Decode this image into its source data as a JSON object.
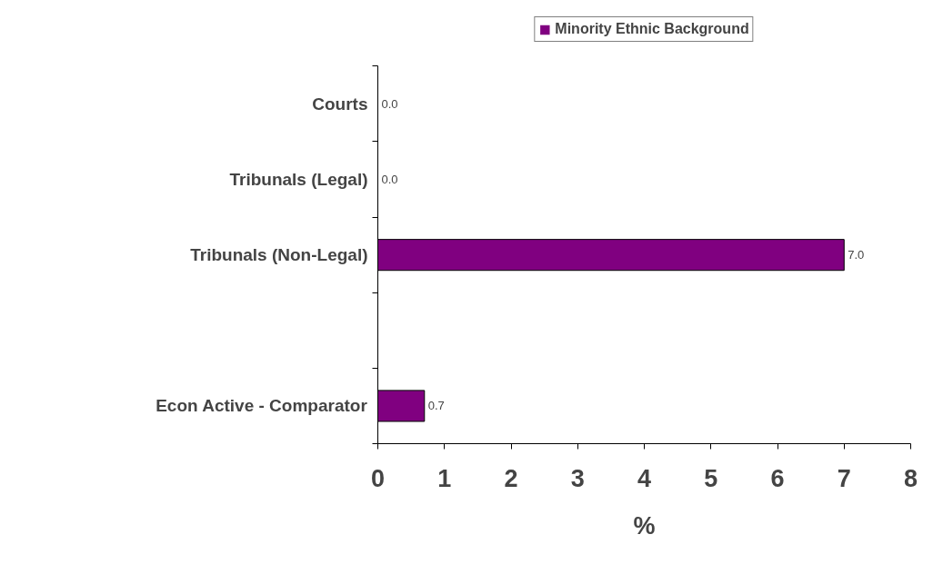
{
  "chart_data": {
    "type": "bar",
    "orientation": "horizontal",
    "xlabel": "%",
    "categories": [
      "Courts",
      "Tribunals (Legal)",
      "Tribunals (Non-Legal)",
      null,
      "Econ Active - Comparator"
    ],
    "series": [
      {
        "name": "Minority Ethnic Background",
        "color": "#800080",
        "values": [
          0.0,
          0.0,
          7.0,
          null,
          0.7
        ],
        "value_labels": [
          "0.0",
          "0.0",
          "7.0",
          null,
          "0.7"
        ]
      }
    ],
    "xlim": [
      0,
      8
    ],
    "xticks": [
      0,
      1,
      2,
      3,
      4,
      5,
      6,
      7,
      8
    ],
    "grid": false,
    "legend": "top"
  }
}
